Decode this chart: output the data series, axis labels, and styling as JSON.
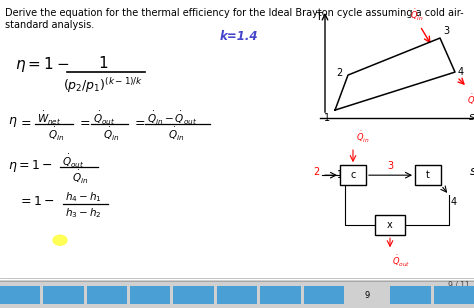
{
  "bg_color": "#d0d0d0",
  "slide_bg": "#ffffff",
  "header": "Derive the equation for the thermal efficiency for the Ideal Brayton cycle assuming a cold air-\nstandard analysis.",
  "header_fs": 7.5,
  "k_text": "k=1.4",
  "k_color": "#4444cc",
  "k_fs": 8,
  "nav_color": "#4a9fd4",
  "nav_9_color": "#d0d0d0",
  "page_label": "9 / 11",
  "nav_num": "9",
  "yellow_color": "#ffff55",
  "divider_color": "#c0c0c0"
}
